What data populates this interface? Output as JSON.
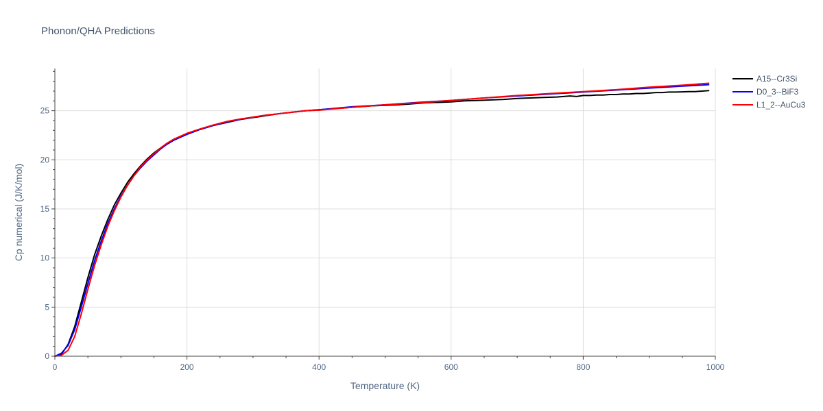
{
  "chart_data": {
    "type": "line",
    "title": "Phonon/QHA Predictions",
    "xlabel": "Temperature (K)",
    "ylabel": "Cp numerical (J/K/mol)",
    "xlim": [
      0,
      1000
    ],
    "ylim": [
      0,
      29.3
    ],
    "xticks": [
      0,
      200,
      400,
      600,
      800,
      1000
    ],
    "xtick_labels": [
      "0",
      "200",
      "400",
      "600",
      "800",
      "1000"
    ],
    "yticks": [
      0,
      5,
      10,
      15,
      20,
      25
    ],
    "ytick_labels": [
      "0",
      "5",
      "10",
      "15",
      "20",
      "25"
    ],
    "grid": true,
    "legend_position": "top-right",
    "series": [
      {
        "name": "A15--Cr3Si",
        "color": "#000000",
        "x": [
          0,
          10,
          20,
          30,
          40,
          50,
          60,
          70,
          80,
          90,
          100,
          110,
          120,
          130,
          140,
          150,
          160,
          170,
          180,
          190,
          200,
          220,
          240,
          260,
          280,
          300,
          320,
          340,
          360,
          380,
          400,
          420,
          440,
          460,
          480,
          500,
          520,
          540,
          560,
          580,
          600,
          620,
          640,
          660,
          680,
          700,
          720,
          740,
          760,
          770,
          780,
          790,
          800,
          810,
          820,
          830,
          840,
          850,
          860,
          870,
          880,
          890,
          900,
          910,
          920,
          930,
          940,
          950,
          960,
          970,
          980,
          990
        ],
        "y": [
          0.0,
          0.2,
          1.2,
          3.0,
          5.5,
          8.0,
          10.3,
          12.2,
          13.9,
          15.4,
          16.6,
          17.7,
          18.6,
          19.4,
          20.1,
          20.7,
          21.2,
          21.6,
          22.0,
          22.3,
          22.6,
          23.1,
          23.5,
          23.8,
          24.1,
          24.3,
          24.5,
          24.7,
          24.85,
          25.0,
          25.1,
          25.2,
          25.3,
          25.4,
          25.5,
          25.55,
          25.6,
          25.7,
          25.8,
          25.85,
          25.9,
          26.0,
          26.05,
          26.1,
          26.15,
          26.25,
          26.3,
          26.35,
          26.4,
          26.45,
          26.5,
          26.45,
          26.55,
          26.55,
          26.6,
          26.6,
          26.65,
          26.65,
          26.7,
          26.7,
          26.75,
          26.75,
          26.8,
          26.85,
          26.85,
          26.9,
          26.9,
          26.92,
          26.95,
          26.95,
          27.0,
          27.05
        ]
      },
      {
        "name": "D0_3--BiF3",
        "color": "#0000ff",
        "x": [
          0,
          10,
          20,
          30,
          40,
          50,
          60,
          70,
          80,
          90,
          100,
          110,
          120,
          130,
          140,
          150,
          160,
          170,
          180,
          190,
          200,
          220,
          240,
          260,
          280,
          300,
          320,
          340,
          360,
          380,
          400,
          450,
          500,
          550,
          600,
          650,
          700,
          750,
          800,
          850,
          900,
          950,
          990
        ],
        "y": [
          0.0,
          0.3,
          1.1,
          2.7,
          5.0,
          7.4,
          9.7,
          11.7,
          13.5,
          15.0,
          16.3,
          17.4,
          18.4,
          19.2,
          19.9,
          20.5,
          21.1,
          21.6,
          22.0,
          22.3,
          22.6,
          23.1,
          23.5,
          23.85,
          24.1,
          24.35,
          24.55,
          24.7,
          24.85,
          25.0,
          25.1,
          25.4,
          25.6,
          25.85,
          26.05,
          26.3,
          26.5,
          26.7,
          26.9,
          27.1,
          27.3,
          27.5,
          27.65
        ]
      },
      {
        "name": "L1_2--AuCu3",
        "color": "#ff0000",
        "x": [
          0,
          10,
          20,
          30,
          40,
          50,
          60,
          70,
          80,
          90,
          100,
          110,
          120,
          130,
          140,
          150,
          160,
          170,
          180,
          190,
          200,
          220,
          240,
          260,
          280,
          300,
          320,
          340,
          360,
          380,
          400,
          450,
          500,
          550,
          600,
          650,
          700,
          750,
          800,
          850,
          900,
          950,
          990
        ],
        "y": [
          0.0,
          0.1,
          0.6,
          2.0,
          4.3,
          6.8,
          9.2,
          11.3,
          13.2,
          14.8,
          16.2,
          17.4,
          18.4,
          19.3,
          20.0,
          20.6,
          21.2,
          21.7,
          22.1,
          22.4,
          22.7,
          23.15,
          23.55,
          23.9,
          24.15,
          24.35,
          24.55,
          24.7,
          24.85,
          25.0,
          25.05,
          25.35,
          25.6,
          25.8,
          26.05,
          26.3,
          26.55,
          26.75,
          26.95,
          27.15,
          27.4,
          27.6,
          27.8
        ]
      }
    ]
  }
}
